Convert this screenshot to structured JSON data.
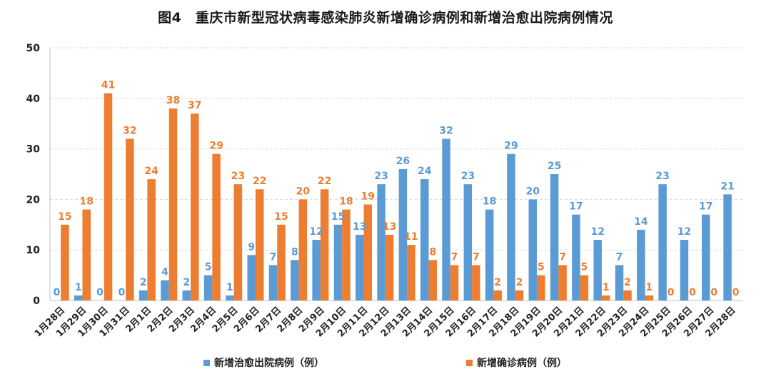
{
  "chart_data": {
    "type": "bar",
    "title": "图4　重庆市新型冠状病毒感染肺炎新增确诊病例和新增治愈出院病例情况",
    "categories": [
      "1月28日",
      "1月29日",
      "1月30日",
      "1月31日",
      "2月1日",
      "2月2日",
      "2月3日",
      "2月4日",
      "2月5日",
      "2月6日",
      "2月7日",
      "2月8日",
      "2月9日",
      "2月10日",
      "2月11日",
      "2月12日",
      "2月13日",
      "2月14日",
      "2月15日",
      "2月16日",
      "2月17日",
      "2月18日",
      "2月19日",
      "2月20日",
      "2月21日",
      "2月22日",
      "2月23日",
      "2月24日",
      "2月25日",
      "2月26日",
      "2月27日",
      "2月28日"
    ],
    "series": [
      {
        "name": "新增治愈出院病例（例）",
        "color": "#5B9BD5",
        "values": [
          0,
          1,
          0,
          0,
          2,
          4,
          2,
          5,
          1,
          9,
          7,
          8,
          12,
          15,
          13,
          23,
          26,
          24,
          32,
          23,
          18,
          29,
          20,
          25,
          17,
          12,
          7,
          14,
          23,
          12,
          17,
          21
        ]
      },
      {
        "name": "新增确诊病例（例）",
        "color": "#ED7D31",
        "values": [
          15,
          18,
          41,
          32,
          24,
          38,
          37,
          29,
          23,
          22,
          15,
          20,
          22,
          18,
          19,
          13,
          11,
          8,
          7,
          7,
          2,
          2,
          5,
          7,
          5,
          1,
          2,
          1,
          0,
          0,
          0,
          0
        ]
      }
    ],
    "y_ticks": [
      "0",
      "10",
      "20",
      "30",
      "40",
      "50"
    ],
    "ylim": [
      0,
      50
    ],
    "grid": true,
    "legend_position": "bottom"
  }
}
